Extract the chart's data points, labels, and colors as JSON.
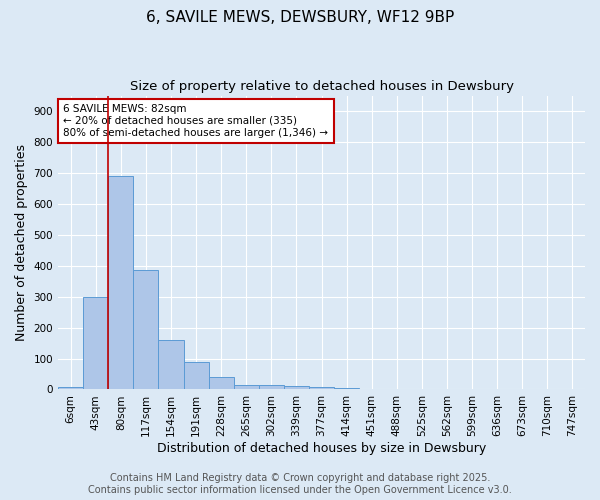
{
  "title1": "6, SAVILE MEWS, DEWSBURY, WF12 9BP",
  "title2": "Size of property relative to detached houses in Dewsbury",
  "xlabel": "Distribution of detached houses by size in Dewsbury",
  "ylabel": "Number of detached properties",
  "bar_labels": [
    "6sqm",
    "43sqm",
    "80sqm",
    "117sqm",
    "154sqm",
    "191sqm",
    "228sqm",
    "265sqm",
    "302sqm",
    "339sqm",
    "377sqm",
    "414sqm",
    "451sqm",
    "488sqm",
    "525sqm",
    "562sqm",
    "599sqm",
    "636sqm",
    "673sqm",
    "710sqm",
    "747sqm"
  ],
  "bar_heights": [
    8,
    300,
    690,
    385,
    160,
    90,
    40,
    15,
    14,
    12,
    8,
    5,
    0,
    0,
    0,
    0,
    0,
    0,
    0,
    0,
    0
  ],
  "bar_color": "#aec6e8",
  "bar_edge_color": "#5b9bd5",
  "vline_x_index": 2,
  "vline_color": "#c00000",
  "annotation_line1": "6 SAVILE MEWS: 82sqm",
  "annotation_line2": "← 20% of detached houses are smaller (335)",
  "annotation_line3": "80% of semi-detached houses are larger (1,346) →",
  "annotation_box_color": "#c00000",
  "ylim": [
    0,
    950
  ],
  "yticks": [
    0,
    100,
    200,
    300,
    400,
    500,
    600,
    700,
    800,
    900
  ],
  "background_color": "#dce9f5",
  "plot_bg_color": "#dce9f5",
  "footer1": "Contains HM Land Registry data © Crown copyright and database right 2025.",
  "footer2": "Contains public sector information licensed under the Open Government Licence v3.0.",
  "title1_fontsize": 11,
  "title2_fontsize": 9.5,
  "xlabel_fontsize": 9,
  "ylabel_fontsize": 9,
  "tick_fontsize": 7.5,
  "annotation_fontsize": 7.5,
  "footer_fontsize": 7
}
